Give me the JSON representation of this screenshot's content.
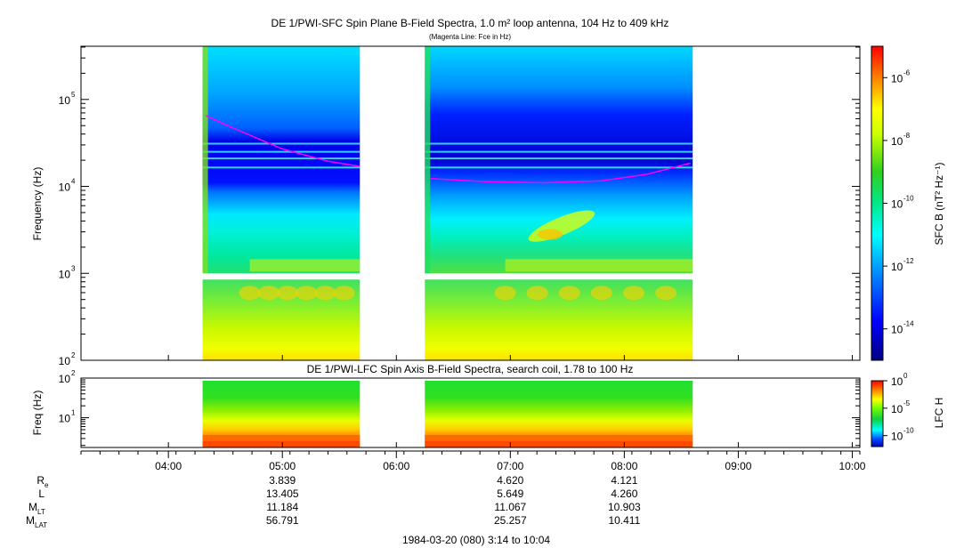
{
  "chart_data": [
    {
      "type": "heatmap",
      "name": "sfc-spectrogram",
      "title": "DE 1/PWI-SFC  Spin Plane B-Field Spectra, 1.0 m² loop antenna, 104 Hz to 409 kHz",
      "subtitle": "(Magenta Line: Fce in Hz)",
      "ylabel": "Frequency (Hz)",
      "yscale": "log",
      "ylim": [
        100,
        409000
      ],
      "yticks": [
        100,
        1000,
        10000,
        100000
      ],
      "ytick_labels": [
        {
          "base": "10",
          "exp": "2"
        },
        {
          "base": "10",
          "exp": "3"
        },
        {
          "base": "10",
          "exp": "4"
        },
        {
          "base": "10",
          "exp": "5"
        }
      ],
      "xlim": [
        3.2333,
        10.0667
      ],
      "data_segments": [
        {
          "start": 4.3,
          "end": 5.68
        },
        {
          "start": 6.25,
          "end": 8.6
        }
      ],
      "fce_curve": [
        {
          "t": 4.33,
          "f": 65000
        },
        {
          "t": 4.6,
          "f": 45000
        },
        {
          "t": 5.0,
          "f": 27000
        },
        {
          "t": 5.4,
          "f": 19500
        },
        {
          "t": 5.68,
          "f": 17000
        },
        {
          "t": 6.3,
          "f": 12300
        },
        {
          "t": 6.8,
          "f": 11300
        },
        {
          "t": 7.3,
          "f": 11000
        },
        {
          "t": 7.8,
          "f": 11600
        },
        {
          "t": 8.2,
          "f": 13800
        },
        {
          "t": 8.58,
          "f": 18500
        }
      ],
      "colorbar": {
        "label": "SFC B (nT² Hz⁻¹)",
        "scale": "log",
        "range": [
          1e-15,
          1e-05
        ],
        "tick_labels": [
          {
            "base": "10",
            "exp": "-6",
            "v": -6
          },
          {
            "base": "10",
            "exp": "-8",
            "v": -8
          },
          {
            "base": "10",
            "exp": "-10",
            "v": -10
          },
          {
            "base": "10",
            "exp": "-12",
            "v": -12
          },
          {
            "base": "10",
            "exp": "-14",
            "v": -14
          }
        ]
      },
      "fce_color": "#ff00ff"
    },
    {
      "type": "heatmap",
      "name": "lfc-spectrogram",
      "title": "DE 1/PWI-LFC  Spin Axis B-Field Spectra, search coil, 1.78 to 100 Hz",
      "ylabel": "Freq (Hz)",
      "yscale": "log",
      "ylim": [
        1.78,
        100
      ],
      "ytick_labels": [
        {
          "base": "10",
          "exp": "2",
          "v": 100
        },
        {
          "base": "10",
          "exp": "1",
          "v": 10
        }
      ],
      "colorbar": {
        "label": "LFC H",
        "scale": "log",
        "range": [
          1e-12,
          1
        ],
        "tick_labels": [
          {
            "base": "10",
            "exp": "0",
            "v": 0
          },
          {
            "base": "10",
            "exp": "-5",
            "v": -5
          },
          {
            "base": "10",
            "exp": "-10",
            "v": -10
          }
        ]
      }
    }
  ],
  "time_axis": {
    "tick_labels": [
      "04:00",
      "05:00",
      "06:00",
      "07:00",
      "08:00",
      "09:00",
      "10:00"
    ],
    "tick_hours": [
      4,
      5,
      6,
      7,
      8,
      9,
      10
    ]
  },
  "ephemeris": {
    "rows": [
      {
        "label": "R",
        "sub": "e",
        "values": [
          "3.839",
          "4.620",
          "4.121"
        ]
      },
      {
        "label": "L",
        "sub": "",
        "values": [
          "13.405",
          "5.649",
          "4.260"
        ]
      },
      {
        "label": "M",
        "sub": "LT",
        "values": [
          "11.184",
          "11.067",
          "10.903"
        ]
      },
      {
        "label": "M",
        "sub": "LAT",
        "values": [
          "56.791",
          "25.257",
          "10.411"
        ]
      }
    ],
    "value_hours": [
      5,
      7,
      8
    ]
  },
  "footer": "1984-03-20 (080) 3:14 to 10:04"
}
